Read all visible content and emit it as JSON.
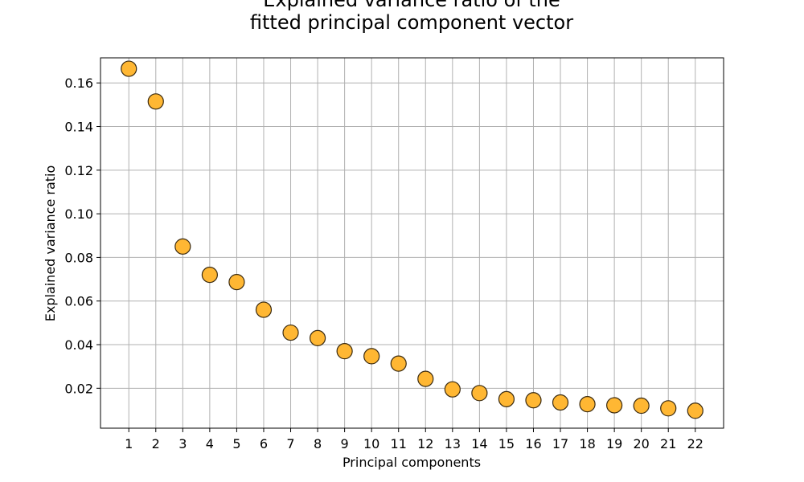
{
  "chart_data": {
    "type": "scatter",
    "title_lines": [
      "Explained variance ratio of the",
      "fitted principal component vector"
    ],
    "xlabel": "Principal components",
    "ylabel": "Explained variance ratio",
    "x": [
      1,
      2,
      3,
      4,
      5,
      6,
      7,
      8,
      9,
      10,
      11,
      12,
      13,
      14,
      15,
      16,
      17,
      18,
      19,
      20,
      21,
      22
    ],
    "y": [
      0.1665,
      0.1515,
      0.085,
      0.072,
      0.0687,
      0.056,
      0.0455,
      0.043,
      0.037,
      0.0347,
      0.0313,
      0.0243,
      0.0195,
      0.0178,
      0.015,
      0.0145,
      0.0135,
      0.0127,
      0.0122,
      0.012,
      0.0108,
      0.0097
    ],
    "xlim": [
      -0.05,
      23.05
    ],
    "ylim": [
      0.0017,
      0.1715
    ],
    "xticks": [
      1,
      2,
      3,
      4,
      5,
      6,
      7,
      8,
      9,
      10,
      11,
      12,
      13,
      14,
      15,
      16,
      17,
      18,
      19,
      20,
      21,
      22
    ],
    "yticks": [
      0.02,
      0.04,
      0.06,
      0.08,
      0.1,
      0.12,
      0.14,
      0.16
    ],
    "ytick_labels": [
      "0.02",
      "0.04",
      "0.06",
      "0.08",
      "0.10",
      "0.12",
      "0.14",
      "0.16"
    ],
    "grid": true,
    "marker_color": "#ffb733",
    "marker_edge_color": "#3a2a10"
  }
}
